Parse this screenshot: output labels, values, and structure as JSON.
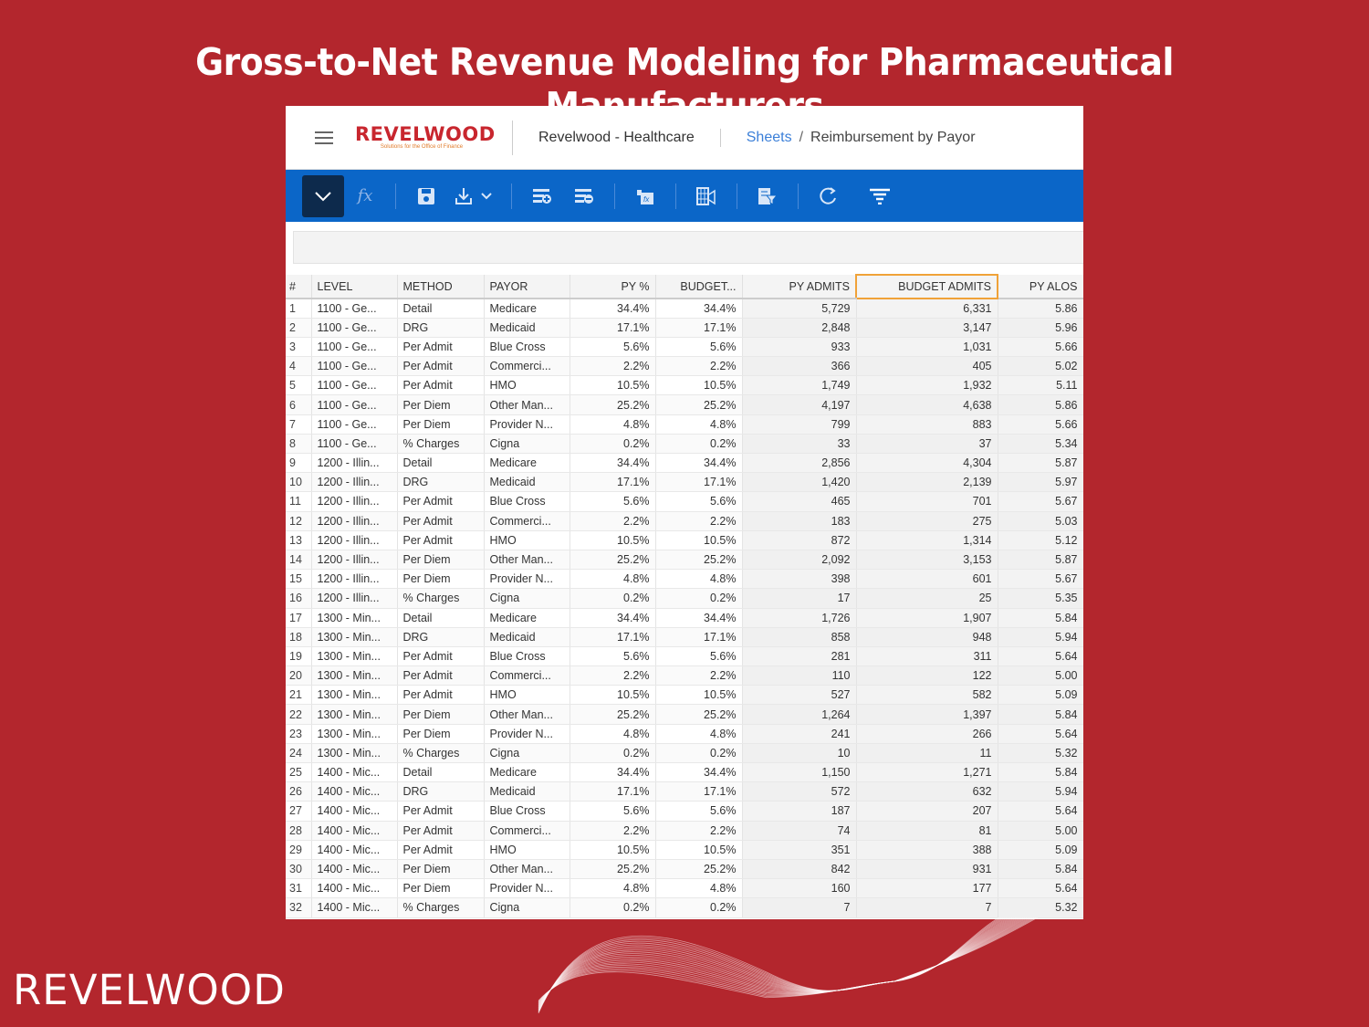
{
  "title": "Gross-to-Net Revenue Modeling for Pharmaceutical Manufacturers",
  "header": {
    "logo_word": "REVELWOOD",
    "logo_tagline": "Solutions for the Office of Finance",
    "app_name": "Revelwood - Healthcare",
    "breadcrumb": {
      "root": "Sheets",
      "separator": "/",
      "current": "Reimbursement by Payor"
    }
  },
  "toolbar": {
    "icons": [
      "chevron-down-icon",
      "function-icon",
      "save-icon",
      "download-icon",
      "add-row-icon",
      "remove-row-icon",
      "formula-sheet-icon",
      "columns-icon",
      "sheet-filter-icon",
      "refresh-icon",
      "filter-icon"
    ]
  },
  "formula_bar": {
    "value": ""
  },
  "colors": {
    "background": "#b3262d",
    "toolbar": "#0b66c8",
    "selected_header": "#f0a238"
  },
  "table": {
    "columns": [
      "#",
      "LEVEL",
      "METHOD",
      "PAYOR",
      "PY %",
      "BUDGET...",
      "PY ADMITS",
      "BUDGET ADMITS",
      "PY ALOS"
    ],
    "selected_column": "BUDGET ADMITS",
    "rows": [
      [
        "1",
        "1100 - Ge...",
        "Detail",
        "Medicare",
        "34.4%",
        "34.4%",
        "5,729",
        "6,331",
        "5.86"
      ],
      [
        "2",
        "1100 - Ge...",
        "DRG",
        "Medicaid",
        "17.1%",
        "17.1%",
        "2,848",
        "3,147",
        "5.96"
      ],
      [
        "3",
        "1100 - Ge...",
        "Per Admit",
        "Blue Cross",
        "5.6%",
        "5.6%",
        "933",
        "1,031",
        "5.66"
      ],
      [
        "4",
        "1100 - Ge...",
        "Per Admit",
        "Commerci...",
        "2.2%",
        "2.2%",
        "366",
        "405",
        "5.02"
      ],
      [
        "5",
        "1100 - Ge...",
        "Per Admit",
        "HMO",
        "10.5%",
        "10.5%",
        "1,749",
        "1,932",
        "5.11"
      ],
      [
        "6",
        "1100 - Ge...",
        "Per Diem",
        "Other Man...",
        "25.2%",
        "25.2%",
        "4,197",
        "4,638",
        "5.86"
      ],
      [
        "7",
        "1100 - Ge...",
        "Per Diem",
        "Provider N...",
        "4.8%",
        "4.8%",
        "799",
        "883",
        "5.66"
      ],
      [
        "8",
        "1100 - Ge...",
        "% Charges",
        "Cigna",
        "0.2%",
        "0.2%",
        "33",
        "37",
        "5.34"
      ],
      [
        "9",
        "1200 - Illin...",
        "Detail",
        "Medicare",
        "34.4%",
        "34.4%",
        "2,856",
        "4,304",
        "5.87"
      ],
      [
        "10",
        "1200 - Illin...",
        "DRG",
        "Medicaid",
        "17.1%",
        "17.1%",
        "1,420",
        "2,139",
        "5.97"
      ],
      [
        "11",
        "1200 - Illin...",
        "Per Admit",
        "Blue Cross",
        "5.6%",
        "5.6%",
        "465",
        "701",
        "5.67"
      ],
      [
        "12",
        "1200 - Illin...",
        "Per Admit",
        "Commerci...",
        "2.2%",
        "2.2%",
        "183",
        "275",
        "5.03"
      ],
      [
        "13",
        "1200 - Illin...",
        "Per Admit",
        "HMO",
        "10.5%",
        "10.5%",
        "872",
        "1,314",
        "5.12"
      ],
      [
        "14",
        "1200 - Illin...",
        "Per Diem",
        "Other Man...",
        "25.2%",
        "25.2%",
        "2,092",
        "3,153",
        "5.87"
      ],
      [
        "15",
        "1200 - Illin...",
        "Per Diem",
        "Provider N...",
        "4.8%",
        "4.8%",
        "398",
        "601",
        "5.67"
      ],
      [
        "16",
        "1200 - Illin...",
        "% Charges",
        "Cigna",
        "0.2%",
        "0.2%",
        "17",
        "25",
        "5.35"
      ],
      [
        "17",
        "1300 - Min...",
        "Detail",
        "Medicare",
        "34.4%",
        "34.4%",
        "1,726",
        "1,907",
        "5.84"
      ],
      [
        "18",
        "1300 - Min...",
        "DRG",
        "Medicaid",
        "17.1%",
        "17.1%",
        "858",
        "948",
        "5.94"
      ],
      [
        "19",
        "1300 - Min...",
        "Per Admit",
        "Blue Cross",
        "5.6%",
        "5.6%",
        "281",
        "311",
        "5.64"
      ],
      [
        "20",
        "1300 - Min...",
        "Per Admit",
        "Commerci...",
        "2.2%",
        "2.2%",
        "110",
        "122",
        "5.00"
      ],
      [
        "21",
        "1300 - Min...",
        "Per Admit",
        "HMO",
        "10.5%",
        "10.5%",
        "527",
        "582",
        "5.09"
      ],
      [
        "22",
        "1300 - Min...",
        "Per Diem",
        "Other Man...",
        "25.2%",
        "25.2%",
        "1,264",
        "1,397",
        "5.84"
      ],
      [
        "23",
        "1300 - Min...",
        "Per Diem",
        "Provider N...",
        "4.8%",
        "4.8%",
        "241",
        "266",
        "5.64"
      ],
      [
        "24",
        "1300 - Min...",
        "% Charges",
        "Cigna",
        "0.2%",
        "0.2%",
        "10",
        "11",
        "5.32"
      ],
      [
        "25",
        "1400 - Mic...",
        "Detail",
        "Medicare",
        "34.4%",
        "34.4%",
        "1,150",
        "1,271",
        "5.84"
      ],
      [
        "26",
        "1400 - Mic...",
        "DRG",
        "Medicaid",
        "17.1%",
        "17.1%",
        "572",
        "632",
        "5.94"
      ],
      [
        "27",
        "1400 - Mic...",
        "Per Admit",
        "Blue Cross",
        "5.6%",
        "5.6%",
        "187",
        "207",
        "5.64"
      ],
      [
        "28",
        "1400 - Mic...",
        "Per Admit",
        "Commerci...",
        "2.2%",
        "2.2%",
        "74",
        "81",
        "5.00"
      ],
      [
        "29",
        "1400 - Mic...",
        "Per Admit",
        "HMO",
        "10.5%",
        "10.5%",
        "351",
        "388",
        "5.09"
      ],
      [
        "30",
        "1400 - Mic...",
        "Per Diem",
        "Other Man...",
        "25.2%",
        "25.2%",
        "842",
        "931",
        "5.84"
      ],
      [
        "31",
        "1400 - Mic...",
        "Per Diem",
        "Provider N...",
        "4.8%",
        "4.8%",
        "160",
        "177",
        "5.64"
      ],
      [
        "32",
        "1400 - Mic...",
        "% Charges",
        "Cigna",
        "0.2%",
        "0.2%",
        "7",
        "7",
        "5.32"
      ]
    ]
  },
  "footer": {
    "logo_word": "REVELWOOD"
  }
}
